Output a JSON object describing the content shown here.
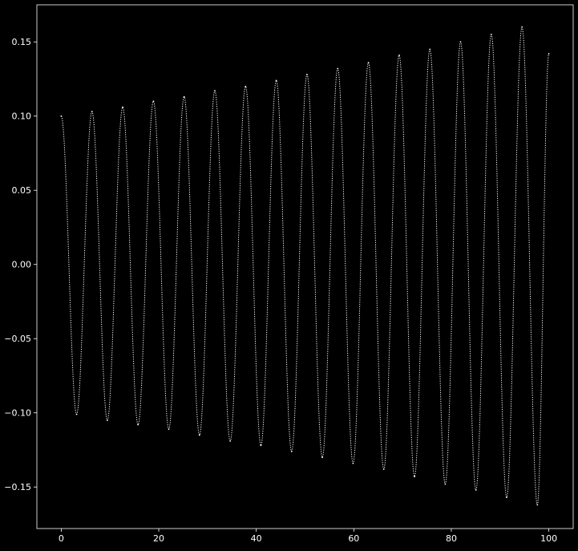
{
  "chart_data": {
    "type": "line",
    "title": "",
    "xlabel": "",
    "ylabel": "",
    "xlim": [
      -5,
      105
    ],
    "ylim": [
      -0.178,
      0.175
    ],
    "x_ticks": [
      0,
      20,
      40,
      60,
      80,
      100
    ],
    "x_tick_labels": [
      "0",
      "20",
      "40",
      "60",
      "80",
      "100"
    ],
    "y_ticks": [
      -0.15,
      -0.1,
      -0.05,
      0.0,
      0.05,
      0.1,
      0.15
    ],
    "y_tick_labels": [
      "−0.15",
      "−0.10",
      "−0.05",
      "0.00",
      "0.05",
      "0.10",
      "0.15"
    ],
    "grid": false,
    "background_color": "#000000",
    "axis_color": "#ffffff",
    "line_color": "#ffffff",
    "line_style": "dotted",
    "series": [
      {
        "x": [
          0,
          3.15,
          6.3,
          9.45,
          12.6,
          15.75,
          18.9,
          22.05,
          25.2,
          28.35,
          31.5,
          34.65,
          37.8,
          40.95,
          44.1,
          47.25,
          50.4,
          53.55,
          56.7,
          59.85,
          63.0,
          66.15,
          69.3,
          72.45,
          75.6,
          78.75,
          81.9,
          85.05,
          88.2,
          91.35,
          94.5,
          97.65,
          100
        ],
        "values": [
          0.1,
          -0.101,
          0.103,
          -0.105,
          0.106,
          -0.108,
          0.11,
          -0.111,
          0.113,
          -0.115,
          0.117,
          -0.119,
          0.12,
          -0.122,
          0.124,
          -0.126,
          0.128,
          -0.13,
          0.132,
          -0.134,
          0.136,
          -0.138,
          0.141,
          -0.143,
          0.145,
          -0.148,
          0.15,
          -0.152,
          0.155,
          -0.157,
          0.16,
          -0.162,
          0.142
        ]
      }
    ]
  }
}
